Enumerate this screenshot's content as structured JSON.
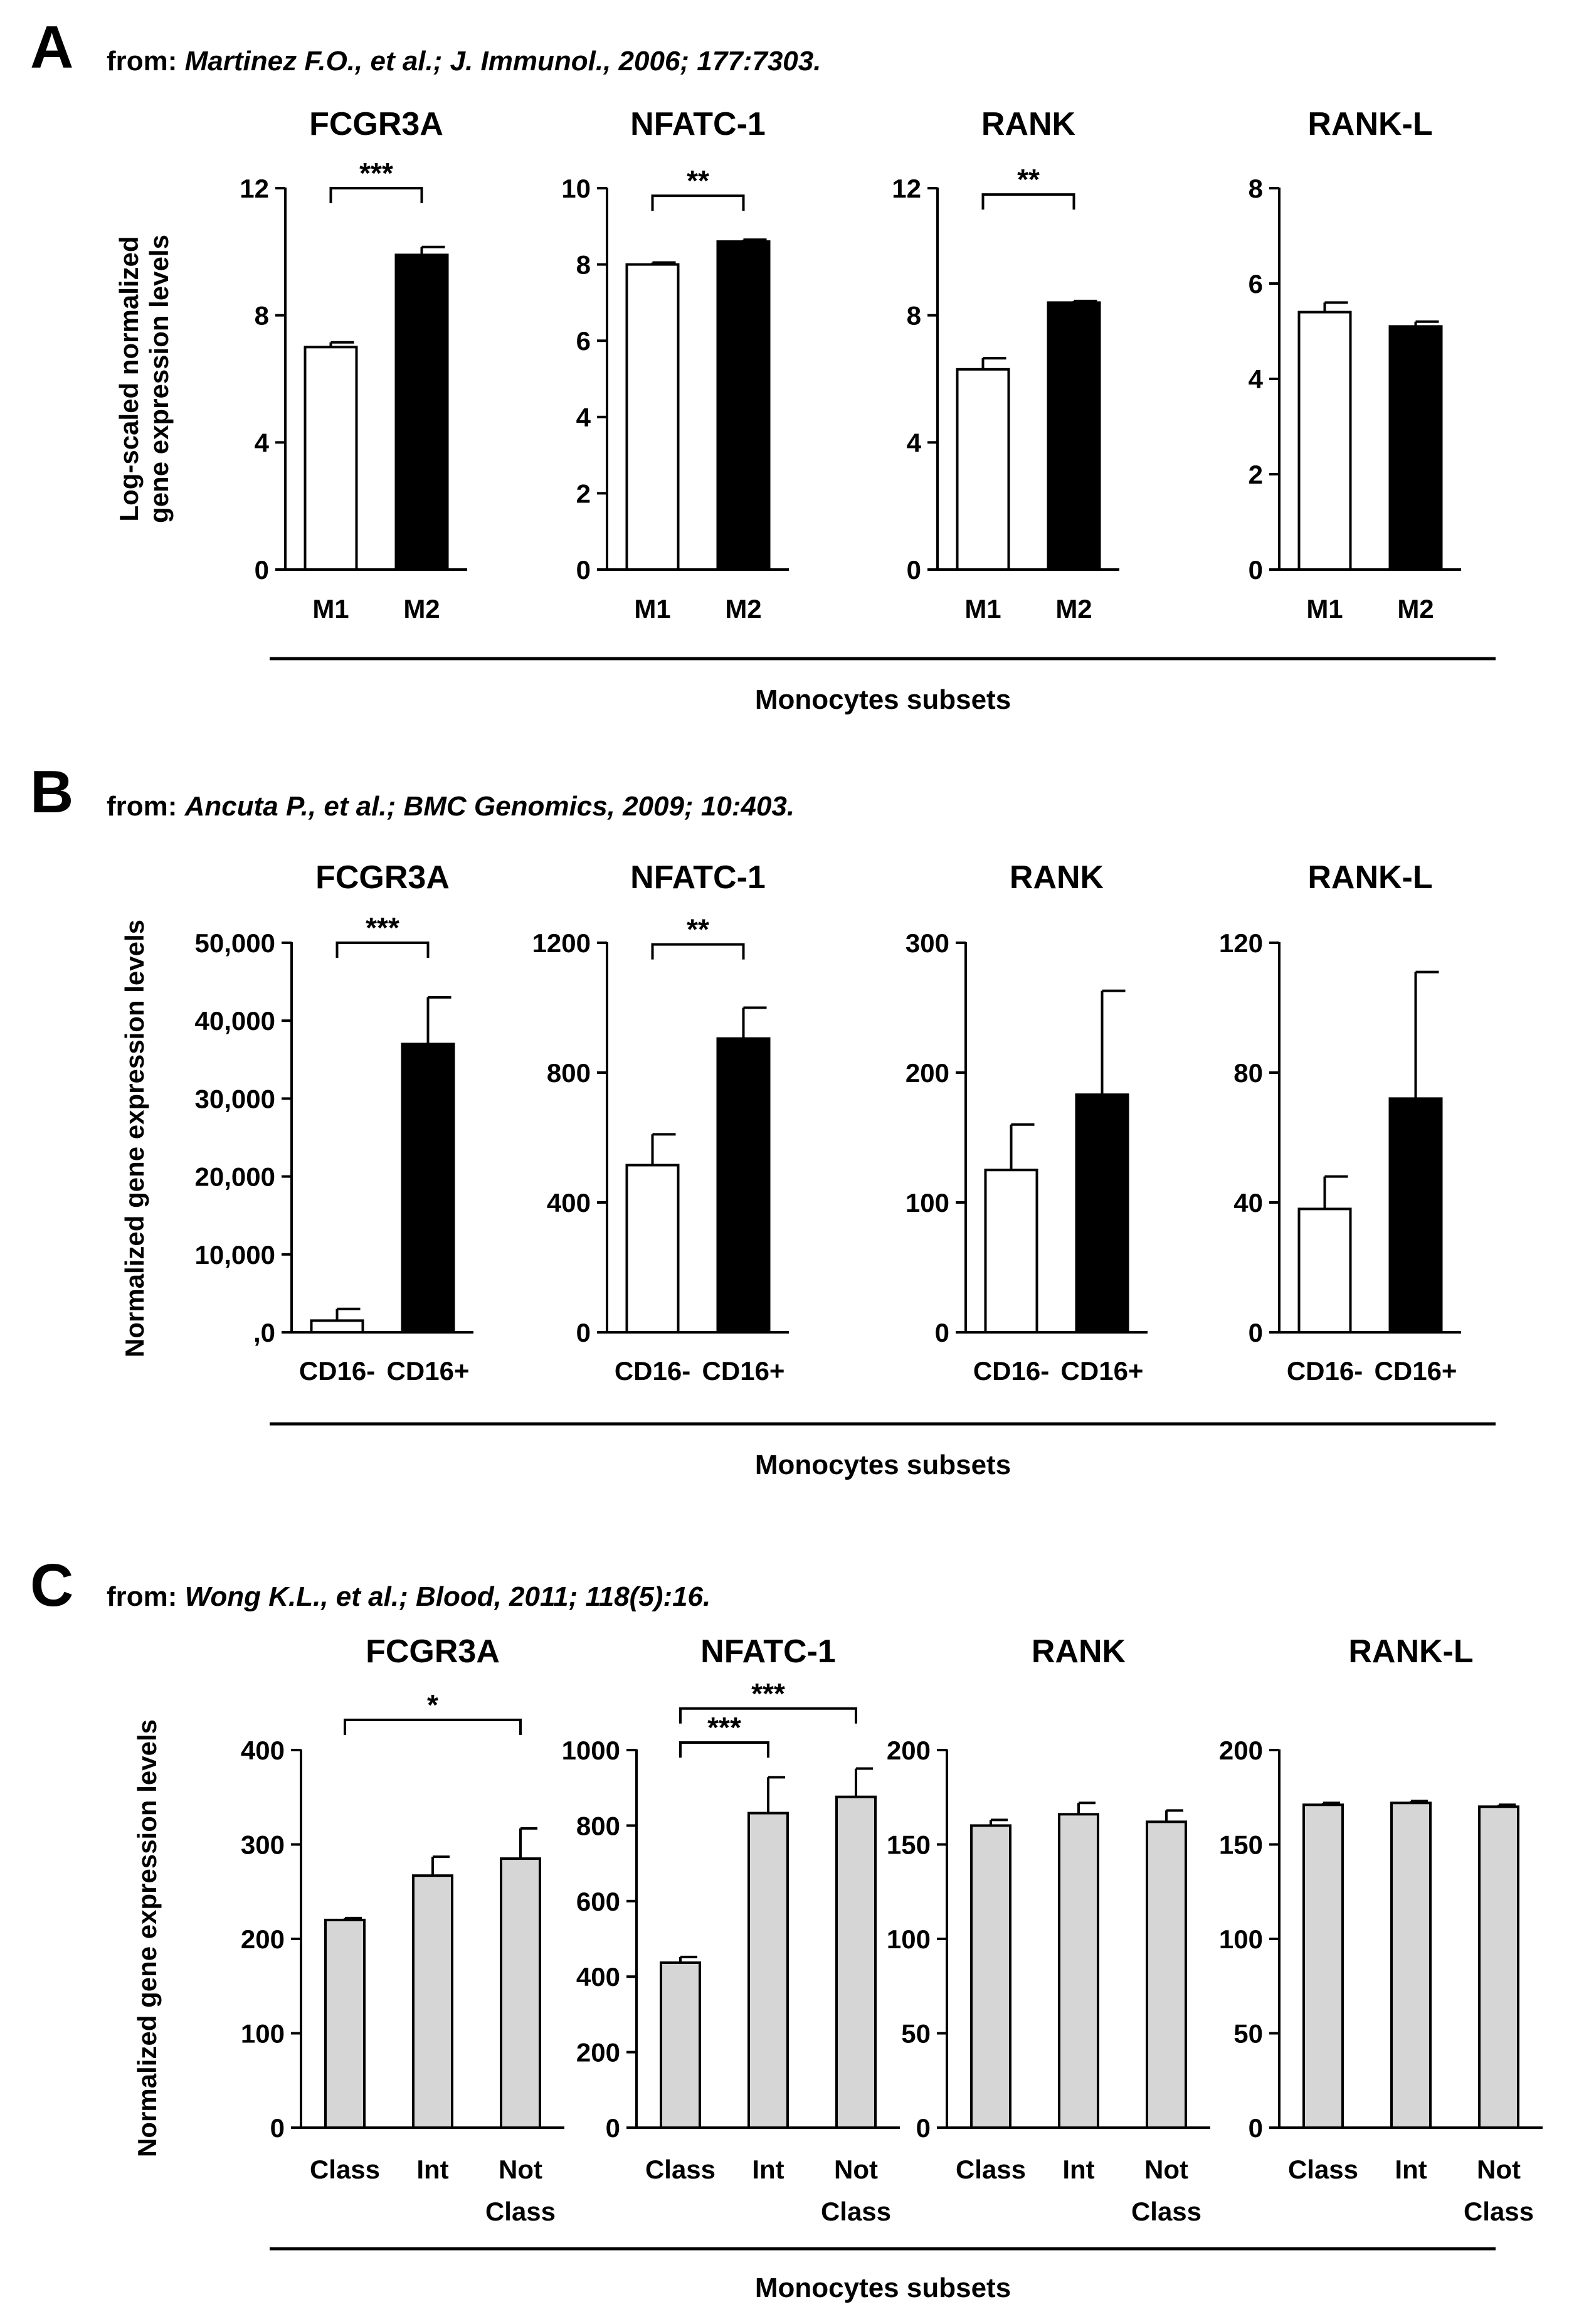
{
  "figure": {
    "x_axis_label": "Monocytes subsets"
  },
  "chart_data": [
    {
      "type": "bar",
      "panel": "A",
      "citation_prefix": "from:",
      "citation": "Martinez F.O., et al.; J. Immunol., 2006; 177:7303.",
      "ylabel": [
        "Log-scaled normalized",
        "gene expression levels"
      ],
      "xlabel": "Monocytes subsets",
      "charts": [
        {
          "title": "FCGR3A",
          "categories": [
            [
              "M1"
            ],
            [
              "M2"
            ]
          ],
          "values": [
            7.0,
            9.9
          ],
          "errors": [
            0.15,
            0.25
          ],
          "fills": [
            "white",
            "black"
          ],
          "ylim": [
            0,
            12
          ],
          "ticks": [
            0,
            4,
            8,
            12
          ],
          "tick_labels": [
            "0",
            "4",
            "8",
            "12"
          ],
          "significance": [
            {
              "from": 0,
              "to": 1,
              "label": "***",
              "level": 12.0
            }
          ]
        },
        {
          "title": "NFATC-1",
          "categories": [
            [
              "M1"
            ],
            [
              "M2"
            ]
          ],
          "values": [
            8.0,
            8.6
          ],
          "errors": [
            0.05,
            0.05
          ],
          "fills": [
            "white",
            "black"
          ],
          "ylim": [
            0,
            10
          ],
          "ticks": [
            0,
            2,
            4,
            6,
            8,
            10
          ],
          "tick_labels": [
            "0",
            "2",
            "4",
            "6",
            "8",
            "10"
          ],
          "significance": [
            {
              "from": 0,
              "to": 1,
              "label": "**",
              "level": 9.8
            }
          ]
        },
        {
          "title": "RANK",
          "categories": [
            [
              "M1"
            ],
            [
              "M2"
            ]
          ],
          "values": [
            6.3,
            8.4
          ],
          "errors": [
            0.35,
            0.05
          ],
          "fills": [
            "white",
            "black"
          ],
          "ylim": [
            0,
            12
          ],
          "ticks": [
            0,
            4,
            8,
            12
          ],
          "tick_labels": [
            "0",
            "4",
            "8",
            "12"
          ],
          "significance": [
            {
              "from": 0,
              "to": 1,
              "label": "**",
              "level": 11.8
            }
          ]
        },
        {
          "title": "RANK-L",
          "categories": [
            [
              "M1"
            ],
            [
              "M2"
            ]
          ],
          "values": [
            5.4,
            5.1
          ],
          "errors": [
            0.2,
            0.1
          ],
          "fills": [
            "white",
            "black"
          ],
          "ylim": [
            0,
            8
          ],
          "ticks": [
            0,
            2,
            4,
            6,
            8
          ],
          "tick_labels": [
            "0",
            "2",
            "4",
            "6",
            "8"
          ],
          "significance": []
        }
      ]
    },
    {
      "type": "bar",
      "panel": "B",
      "citation_prefix": "from:",
      "citation": "Ancuta P., et al.; BMC Genomics, 2009; 10:403.",
      "ylabel": [
        "Normalized gene expression levels"
      ],
      "xlabel": "Monocytes subsets",
      "charts": [
        {
          "title": "FCGR3A",
          "categories": [
            [
              "CD16-"
            ],
            [
              "CD16+"
            ]
          ],
          "values": [
            1500,
            37000
          ],
          "errors": [
            1500,
            6000
          ],
          "fills": [
            "white",
            "black"
          ],
          "ylim": [
            0,
            50000
          ],
          "ticks": [
            0,
            10000,
            20000,
            30000,
            40000,
            50000
          ],
          "tick_labels": [
            ",0",
            "10,000",
            "20,000",
            "30,000",
            "40,000",
            "50,000"
          ],
          "significance": [
            {
              "from": 0,
              "to": 1,
              "label": "***",
              "level": 50000
            }
          ]
        },
        {
          "title": "NFATC-1",
          "categories": [
            [
              "CD16-"
            ],
            [
              "CD16+"
            ]
          ],
          "values": [
            515,
            905
          ],
          "errors": [
            95,
            95
          ],
          "fills": [
            "white",
            "black"
          ],
          "ylim": [
            0,
            1200
          ],
          "ticks": [
            0,
            400,
            800,
            1200
          ],
          "tick_labels": [
            "0",
            "400",
            "800",
            "1200"
          ],
          "significance": [
            {
              "from": 0,
              "to": 1,
              "label": "**",
              "level": 1195
            }
          ]
        },
        {
          "title": "RANK",
          "categories": [
            [
              "CD16-"
            ],
            [
              "CD16+"
            ]
          ],
          "values": [
            125,
            183
          ],
          "errors": [
            35,
            80
          ],
          "fills": [
            "white",
            "black"
          ],
          "ylim": [
            0,
            300
          ],
          "ticks": [
            0,
            100,
            200,
            300
          ],
          "tick_labels": [
            "0",
            "100",
            "200",
            "300"
          ],
          "significance": []
        },
        {
          "title": "RANK-L",
          "categories": [
            [
              "CD16-"
            ],
            [
              "CD16+"
            ]
          ],
          "values": [
            38,
            72
          ],
          "errors": [
            10,
            39
          ],
          "fills": [
            "white",
            "black"
          ],
          "ylim": [
            0,
            120
          ],
          "ticks": [
            0,
            40,
            80,
            120
          ],
          "tick_labels": [
            "0",
            "40",
            "80",
            "120"
          ],
          "significance": []
        }
      ]
    },
    {
      "type": "bar",
      "panel": "C",
      "citation_prefix": "from:",
      "citation": "Wong K.L., et al.; Blood, 2011; 118(5):16.",
      "ylabel": [
        "Normalized gene expression levels"
      ],
      "xlabel": "Monocytes subsets",
      "charts": [
        {
          "title": "FCGR3A",
          "categories": [
            [
              "Class"
            ],
            [
              "Int"
            ],
            [
              "Not",
              "Class"
            ]
          ],
          "values": [
            220,
            267,
            285
          ],
          "errors": [
            2,
            20,
            32
          ],
          "fills": [
            "grey",
            "grey",
            "grey"
          ],
          "ylim": [
            0,
            400
          ],
          "ticks": [
            0,
            100,
            200,
            300,
            400
          ],
          "tick_labels": [
            "0",
            "100",
            "200",
            "300",
            "400"
          ],
          "significance": [
            {
              "from": 0,
              "to": 2,
              "label": "*",
              "level": 432
            }
          ]
        },
        {
          "title": "NFATC-1",
          "categories": [
            [
              "Class"
            ],
            [
              "Int"
            ],
            [
              "Not",
              "Class"
            ]
          ],
          "values": [
            437,
            833,
            876
          ],
          "errors": [
            15,
            95,
            75
          ],
          "fills": [
            "grey",
            "grey",
            "grey"
          ],
          "ylim": [
            0,
            1000
          ],
          "ticks": [
            0,
            200,
            400,
            600,
            800,
            1000
          ],
          "tick_labels": [
            "0",
            "200",
            "400",
            "600",
            "800",
            "1000"
          ],
          "significance": [
            {
              "from": 0,
              "to": 1,
              "label": "***",
              "level": 1020
            },
            {
              "from": 0,
              "to": 2,
              "label": "***",
              "level": 1110
            }
          ]
        },
        {
          "title": "RANK",
          "categories": [
            [
              "Class"
            ],
            [
              "Int"
            ],
            [
              "Not",
              "Class"
            ]
          ],
          "values": [
            160,
            166,
            162
          ],
          "errors": [
            3,
            6,
            6
          ],
          "fills": [
            "grey",
            "grey",
            "grey"
          ],
          "ylim": [
            0,
            200
          ],
          "ticks": [
            0,
            50,
            100,
            150,
            200
          ],
          "tick_labels": [
            "0",
            "50",
            "100",
            "150",
            "200"
          ],
          "significance": []
        },
        {
          "title": "RANK-L",
          "categories": [
            [
              "Class"
            ],
            [
              "Int"
            ],
            [
              "Not",
              "Class"
            ]
          ],
          "values": [
            171,
            172,
            170
          ],
          "errors": [
            1,
            1,
            1
          ],
          "fills": [
            "grey",
            "grey",
            "grey"
          ],
          "ylim": [
            0,
            200
          ],
          "ticks": [
            0,
            50,
            100,
            150,
            200
          ],
          "tick_labels": [
            "0",
            "50",
            "100",
            "150",
            "200"
          ],
          "significance": []
        }
      ]
    }
  ]
}
